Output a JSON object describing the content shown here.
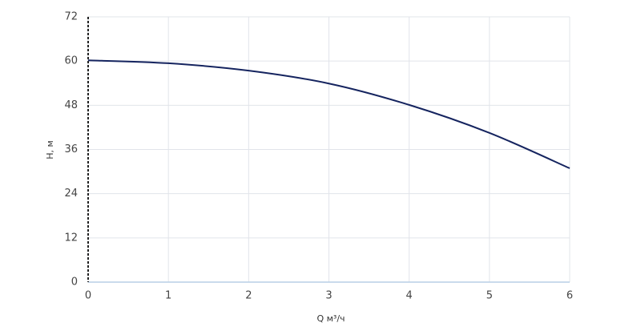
{
  "chart_data": {
    "type": "line",
    "x_label": "Q м³/ч",
    "y_label": "H, м",
    "x": [
      0,
      1,
      2,
      3,
      4,
      5,
      6
    ],
    "series": [
      {
        "name": "H",
        "color": "#15245f",
        "values": [
          60.2,
          59.4,
          57.4,
          53.9,
          48.1,
          40.5,
          30.9
        ]
      }
    ],
    "xlim": [
      0,
      6
    ],
    "xticks": [
      0,
      1,
      2,
      3,
      4,
      5,
      6
    ],
    "ylim": [
      0,
      72
    ],
    "yticks": [
      0,
      12,
      24,
      36,
      48,
      60,
      72
    ],
    "grid": true
  }
}
